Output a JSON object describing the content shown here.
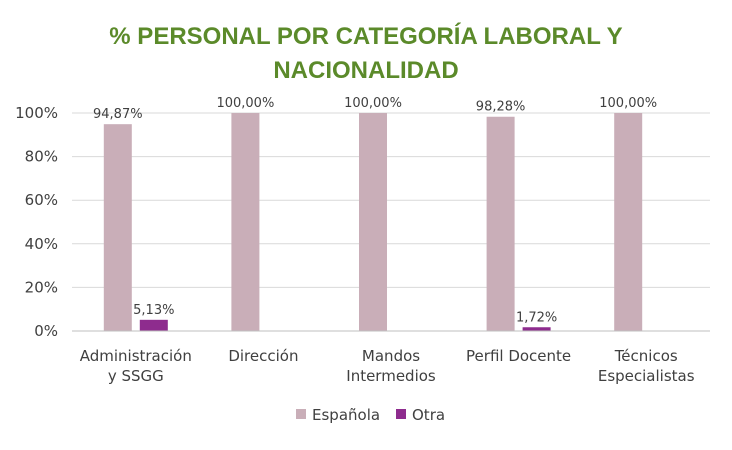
{
  "chart_data": {
    "type": "bar",
    "title_lines": [
      "% PERSONAL POR CATEGORÍA LABORAL Y",
      "NACIONALIDAD"
    ],
    "categories": [
      [
        "Administración",
        "y SSGG"
      ],
      [
        "Dirección"
      ],
      [
        "Mandos",
        "Intermedios"
      ],
      [
        "Perfil Docente"
      ],
      [
        "Técnicos",
        "Especialistas"
      ]
    ],
    "series": [
      {
        "name": "Española",
        "values": [
          94.87,
          100,
          100,
          98.28,
          100
        ],
        "labels": [
          "94,87%",
          "100,00%",
          "100,00%",
          "98,28%",
          "100,00%"
        ],
        "color": "#C9AEB8"
      },
      {
        "name": "Otra",
        "values": [
          5.13,
          0,
          0,
          1.72,
          0
        ],
        "labels": [
          "5,13%",
          "",
          "",
          "1,72%",
          ""
        ],
        "color": "#8E2C8E"
      }
    ],
    "ylim": [
      0,
      100
    ],
    "yticks": [
      0,
      20,
      40,
      60,
      80,
      100
    ],
    "ytick_labels": [
      "0%",
      "20%",
      "40%",
      "60%",
      "80%",
      "100%"
    ],
    "grid": true,
    "legend_position": "bottom",
    "colors": {
      "title": "#5B8A2A",
      "grid": "#D9D9D9",
      "axis": "#BFBFBF",
      "text": "#404040"
    }
  }
}
